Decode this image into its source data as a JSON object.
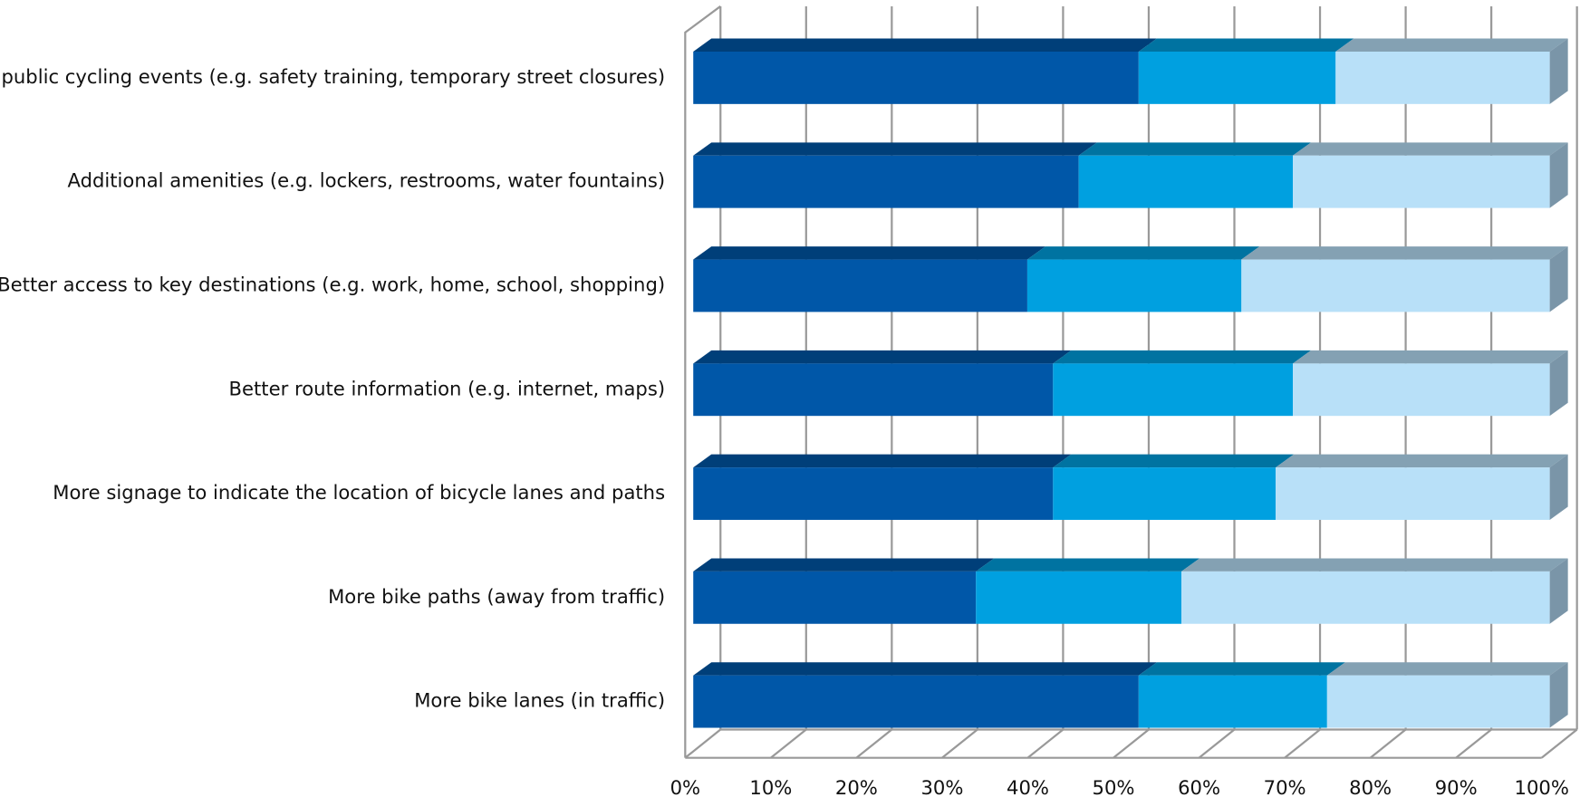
{
  "chart_data": {
    "type": "bar",
    "orientation": "horizontal",
    "stacked": true,
    "three_d": true,
    "categories": [
      "More public cycling events (e.g. safety training, temporary street closures)",
      "Additional amenities (e.g. lockers, restrooms, water fountains)",
      "Better access to key destinations (e.g. work, home, school, shopping)",
      "Better route information (e.g. internet, maps)",
      "More signage to indicate the location of bicycle lanes and paths",
      "More bike paths (away from traffic)",
      "More bike lanes (in traffic)"
    ],
    "series": [
      {
        "color": "#0057a8",
        "values": [
          52,
          45,
          39,
          42,
          42,
          33,
          52
        ]
      },
      {
        "color": "#00a0e0",
        "values": [
          23,
          25,
          25,
          28,
          26,
          24,
          22
        ]
      },
      {
        "color": "#b8e0f8",
        "values": [
          25,
          30,
          36,
          30,
          32,
          43,
          26
        ]
      }
    ],
    "xlim": [
      0,
      100
    ],
    "xticks": [
      {
        "value": 0,
        "label": "0%"
      },
      {
        "value": 10,
        "label": "10%"
      },
      {
        "value": 20,
        "label": "20%"
      },
      {
        "value": 30,
        "label": "30%"
      },
      {
        "value": 40,
        "label": "40%"
      },
      {
        "value": 50,
        "label": "50%"
      },
      {
        "value": 60,
        "label": "60%"
      },
      {
        "value": 70,
        "label": "70%"
      },
      {
        "value": 80,
        "label": "80%"
      },
      {
        "value": 90,
        "label": "90%"
      },
      {
        "value": 100,
        "label": "100%"
      }
    ],
    "grid": true
  }
}
